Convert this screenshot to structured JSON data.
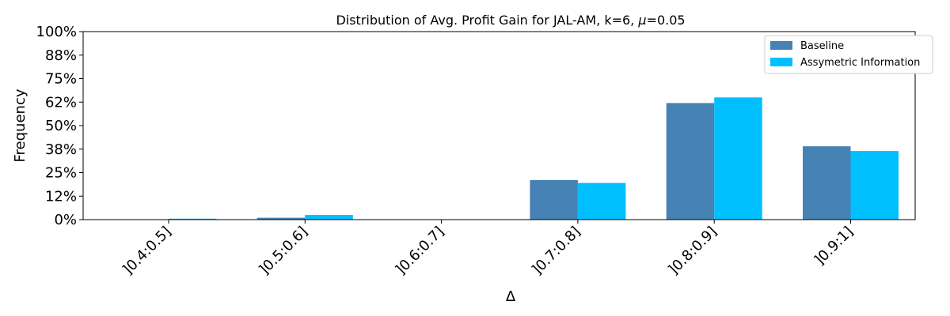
{
  "chart_data": {
    "type": "bar",
    "title_prefix": "Distribution of Avg. Profit Gain for JAL-AM, k=6, ",
    "title_mu": "μ",
    "title_suffix": "=0.05",
    "xlabel": "Δ",
    "ylabel": "Frequency",
    "categories": [
      "]0.4:0.5]",
      "]0.5:0.6]",
      "]0.6:0.7]",
      "]0.7:0.8]",
      "]0.8:0.9]",
      "]0.9:1]"
    ],
    "yticks": [
      "0%",
      "12%",
      "25%",
      "38%",
      "50%",
      "62%",
      "75%",
      "88%",
      "100%"
    ],
    "ylim": [
      0,
      1
    ],
    "grid": false,
    "legend_position": "top-right",
    "series": [
      {
        "name": "Baseline",
        "color": "#4682b4",
        "values": [
          0.0,
          0.01,
          0.0,
          0.21,
          0.62,
          0.39
        ]
      },
      {
        "name": "Assymetric Information",
        "color": "#00bfff",
        "values": [
          0.005,
          0.025,
          0.0,
          0.195,
          0.65,
          0.365
        ]
      }
    ]
  }
}
